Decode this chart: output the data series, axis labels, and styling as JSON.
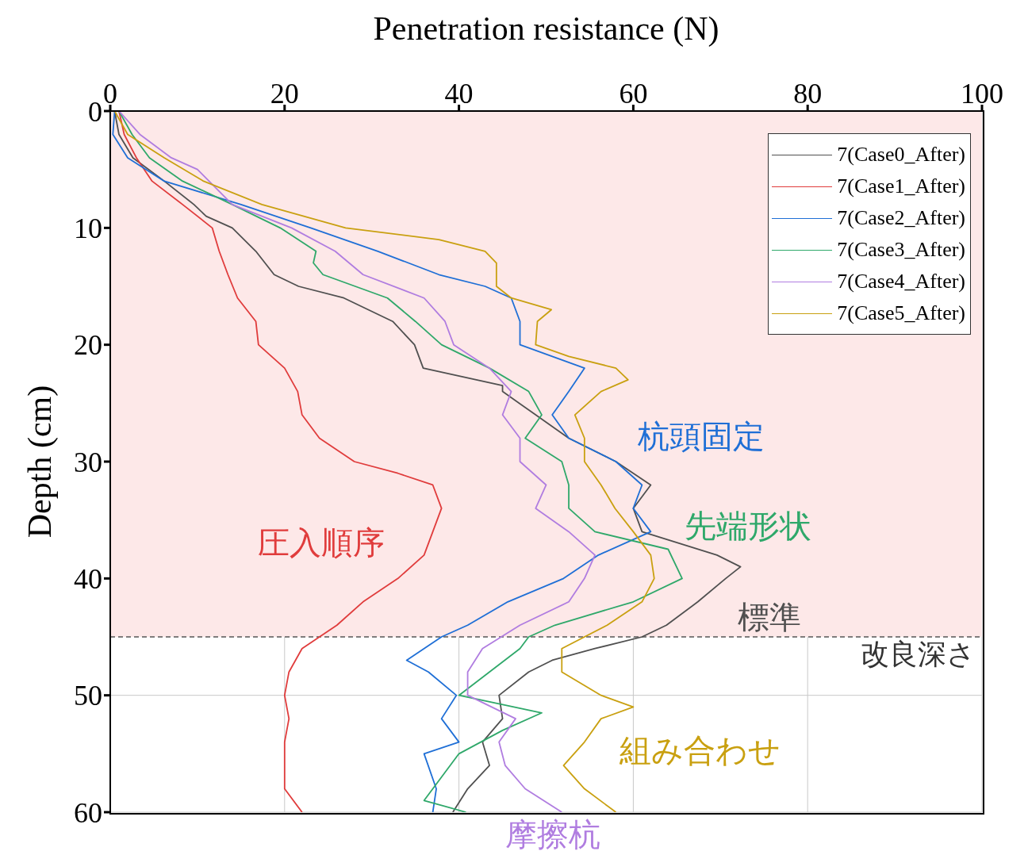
{
  "chart_data": {
    "type": "line",
    "xlabel": "Penetration resistance (N)",
    "ylabel": "Depth (cm)",
    "xlim": [
      0,
      100
    ],
    "xticks": [
      0,
      20,
      40,
      60,
      80,
      100
    ],
    "ylim": [
      60,
      0
    ],
    "yticks": [
      0,
      10,
      20,
      30,
      40,
      50,
      60
    ],
    "grid": true,
    "legend": "top right",
    "series": [
      {
        "name": "7(Case0_After)",
        "color": "#505050",
        "x": [
          0.5,
          1,
          2.6,
          6.2,
          9.6,
          11,
          14,
          16.7,
          18.8,
          21.6,
          26.8,
          32.4,
          34.9,
          35.9,
          45,
          45,
          48.8,
          52.6,
          58,
          62,
          60,
          61,
          69.6,
          72.3,
          70.6,
          67.4,
          63.8,
          61,
          55.6,
          50.7,
          48,
          44.6,
          45,
          42.7,
          43.5,
          41,
          39.3
        ],
        "values": [
          0,
          2,
          4,
          6,
          8,
          9,
          10,
          12,
          14,
          15,
          16,
          18,
          20,
          22,
          23.5,
          24,
          26,
          28,
          30,
          32,
          34,
          36,
          38,
          39,
          40,
          42,
          44,
          45,
          46,
          47,
          48,
          50,
          52,
          54,
          56,
          58,
          60
        ]
      },
      {
        "name": "7(Case1_After)",
        "color": "#e03c3c",
        "x": [
          1,
          1.6,
          3,
          4.8,
          8.3,
          11.7,
          12.5,
          13.5,
          14.6,
          16.7,
          17,
          20,
          21.5,
          22,
          24,
          28,
          33,
          37,
          38,
          37,
          36,
          33,
          29,
          26,
          22,
          20.5,
          20,
          20.5,
          20,
          20,
          20,
          22
        ],
        "values": [
          0,
          2,
          4,
          6,
          8,
          10,
          12,
          14,
          16,
          18,
          20,
          22,
          24,
          26,
          28,
          30,
          31,
          32,
          34,
          36,
          38,
          40,
          42,
          44,
          46,
          48,
          50,
          52,
          54,
          56,
          58,
          60
        ]
      },
      {
        "name": "7(Case2_After)",
        "color": "#1f6fd6",
        "x": [
          0.5,
          0.3,
          2,
          6.2,
          15,
          23,
          30.7,
          37.7,
          43,
          46,
          47,
          47,
          54.4,
          52.6,
          50.7,
          52.6,
          58,
          61,
          60,
          62,
          56,
          52,
          45.6,
          41,
          38,
          34,
          36.5,
          39.7,
          38,
          40,
          36,
          37.4,
          37
        ],
        "values": [
          0,
          2,
          4,
          6,
          8,
          10,
          12,
          14,
          15,
          16,
          18,
          20,
          22,
          24,
          26,
          28,
          30,
          32,
          34,
          36,
          38,
          40,
          42,
          44,
          45,
          47,
          48,
          50,
          52,
          54,
          55,
          58,
          60
        ]
      },
      {
        "name": "7(Case3_After)",
        "color": "#2fa86a",
        "x": [
          1,
          2.5,
          4.5,
          8.3,
          14,
          19.5,
          23.6,
          23.3,
          24.4,
          31.8,
          35,
          38,
          43.5,
          48,
          49.5,
          47.6,
          51.8,
          52.6,
          52.6,
          55.6,
          64,
          65.6,
          60,
          51,
          48,
          47,
          43.5,
          40,
          49.5,
          45,
          40,
          38,
          36,
          40.8
        ],
        "values": [
          0,
          2,
          4,
          6,
          8,
          10,
          12,
          13,
          14,
          16,
          18,
          20,
          22,
          24,
          26,
          28,
          30,
          32,
          34,
          36,
          37.5,
          40,
          42,
          44,
          45,
          46,
          48,
          50,
          51.5,
          53,
          55,
          57,
          59,
          60
        ]
      },
      {
        "name": "7(Case4_After)",
        "color": "#b07de0",
        "x": [
          1,
          3.4,
          7,
          10,
          14,
          20.8,
          25.8,
          29,
          36,
          38.4,
          39.4,
          43.5,
          46,
          45,
          47,
          47,
          50,
          48.8,
          52.6,
          55.6,
          54.4,
          52.6,
          47,
          42.7,
          41,
          41,
          46.5,
          44.6,
          45.3,
          47.6,
          51.8
        ],
        "values": [
          0,
          2,
          4,
          5,
          8,
          10,
          12,
          14,
          16,
          18,
          20,
          22,
          24,
          26,
          28,
          30,
          32,
          34,
          36,
          38,
          40,
          42,
          44,
          46,
          48,
          50,
          52,
          54,
          56,
          58,
          60
        ]
      },
      {
        "name": "7(Case5_After)",
        "color": "#c9a010",
        "x": [
          0.5,
          2,
          6.2,
          10.7,
          17.4,
          27,
          37.7,
          43,
          44.3,
          44.3,
          46,
          50.6,
          49,
          48.8,
          52.6,
          58,
          59.4,
          56.3,
          53.3,
          54.4,
          54.4,
          56.3,
          57.9,
          60,
          62,
          62.4,
          61,
          57,
          51.8,
          51.8,
          56.3,
          60,
          56.3,
          54.4,
          52,
          54.4,
          58
        ],
        "values": [
          0,
          2,
          4,
          6,
          8,
          10,
          11,
          12,
          13,
          15,
          16,
          17,
          18,
          20,
          21,
          22,
          23,
          24,
          26,
          28,
          30,
          32,
          34,
          36,
          38,
          40,
          42,
          44,
          46,
          48,
          50,
          51,
          52,
          54,
          56,
          58,
          60
        ]
      }
    ],
    "ref_lines": [
      {
        "axis": "y",
        "value": 45,
        "label": "改良深さ",
        "line_style": "dashed",
        "color": "#555555"
      }
    ],
    "bands": [
      {
        "axis": "y",
        "from": 0,
        "to": 45,
        "color": "#fde8e8"
      }
    ],
    "annotations": [
      "標準",
      "圧入順序",
      "杭頭固定",
      "先端形状",
      "摩擦杭",
      "組み合わせ"
    ]
  }
}
